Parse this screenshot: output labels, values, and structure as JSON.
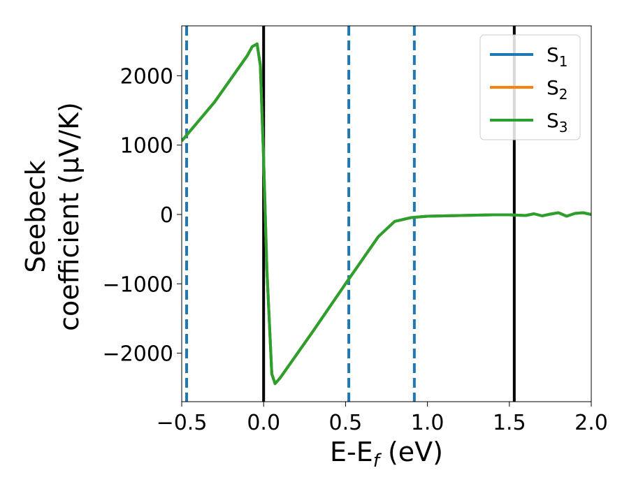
{
  "chart_data": {
    "type": "line",
    "xlabel": "E-E",
    "xlabel_sub": "f",
    "xlabel_unit": " (eV)",
    "ylabel_line1": "Seebeck",
    "ylabel_line2": "coefficient  (μV/K)",
    "xlim": [
      -0.5,
      2.0
    ],
    "ylim": [
      -2700,
      2720
    ],
    "xticks": [
      {
        "value": -0.5,
        "label": "−0.5"
      },
      {
        "value": 0.0,
        "label": "0.0"
      },
      {
        "value": 0.5,
        "label": "0.5"
      },
      {
        "value": 1.0,
        "label": "1.0"
      },
      {
        "value": 1.5,
        "label": "1.5"
      },
      {
        "value": 2.0,
        "label": "2.0"
      }
    ],
    "yticks": [
      {
        "value": -2000,
        "label": "−2000"
      },
      {
        "value": -1000,
        "label": "−1000"
      },
      {
        "value": 0,
        "label": "0"
      },
      {
        "value": 1000,
        "label": "1000"
      },
      {
        "value": 2000,
        "label": "2000"
      }
    ],
    "legend_position": "top-right",
    "grid": false,
    "series": [
      {
        "name": "S",
        "sub": "1",
        "color": "#1f77b4",
        "x": [
          -0.5,
          -0.3,
          -0.1,
          -0.07,
          -0.04,
          -0.02,
          0.0,
          0.02,
          0.05,
          0.07,
          0.1,
          0.3,
          0.5,
          0.7,
          0.8,
          0.9,
          1.0,
          1.2,
          1.4,
          1.5,
          1.6,
          1.65,
          1.7,
          1.75,
          1.8,
          1.85,
          1.9,
          1.95,
          2.0
        ],
        "y": [
          1060,
          1620,
          2290,
          2420,
          2460,
          2150,
          800,
          -800,
          -2300,
          -2440,
          -2360,
          -1690,
          -1000,
          -320,
          -100,
          -45,
          -25,
          -15,
          -5,
          -5,
          -15,
          10,
          -20,
          5,
          25,
          -25,
          15,
          25,
          0
        ]
      },
      {
        "name": "S",
        "sub": "2",
        "color": "#ff7f0e",
        "x": [
          -0.5,
          -0.3,
          -0.1,
          -0.07,
          -0.04,
          -0.02,
          0.0,
          0.02,
          0.05,
          0.07,
          0.1,
          0.3,
          0.5,
          0.7,
          0.8,
          0.9,
          1.0,
          1.2,
          1.4,
          1.5,
          1.6,
          1.65,
          1.7,
          1.75,
          1.8,
          1.85,
          1.9,
          1.95,
          2.0
        ],
        "y": [
          1060,
          1620,
          2290,
          2420,
          2460,
          2150,
          800,
          -800,
          -2300,
          -2440,
          -2360,
          -1690,
          -1000,
          -320,
          -100,
          -45,
          -25,
          -15,
          -5,
          -5,
          -15,
          10,
          -20,
          5,
          25,
          -25,
          15,
          25,
          0
        ]
      },
      {
        "name": "S",
        "sub": "3",
        "color": "#2ca02c",
        "x": [
          -0.5,
          -0.3,
          -0.1,
          -0.07,
          -0.04,
          -0.02,
          0.0,
          0.02,
          0.05,
          0.07,
          0.1,
          0.3,
          0.5,
          0.7,
          0.8,
          0.9,
          1.0,
          1.2,
          1.4,
          1.5,
          1.6,
          1.65,
          1.7,
          1.75,
          1.8,
          1.85,
          1.9,
          1.95,
          2.0
        ],
        "y": [
          1060,
          1620,
          2290,
          2420,
          2460,
          2150,
          800,
          -800,
          -2300,
          -2440,
          -2360,
          -1690,
          -1000,
          -320,
          -100,
          -45,
          -25,
          -15,
          -5,
          -5,
          -15,
          10,
          -20,
          5,
          25,
          -25,
          15,
          25,
          0
        ]
      }
    ],
    "vertical_lines": [
      {
        "x": 0.0,
        "style": "solid",
        "color": "#000000"
      },
      {
        "x": 1.53,
        "style": "solid",
        "color": "#000000"
      },
      {
        "x": -0.47,
        "style": "dashed",
        "color": "#1f77b4"
      },
      {
        "x": 0.52,
        "style": "dashed",
        "color": "#1f77b4"
      },
      {
        "x": 0.92,
        "style": "dashed",
        "color": "#1f77b4"
      }
    ]
  }
}
